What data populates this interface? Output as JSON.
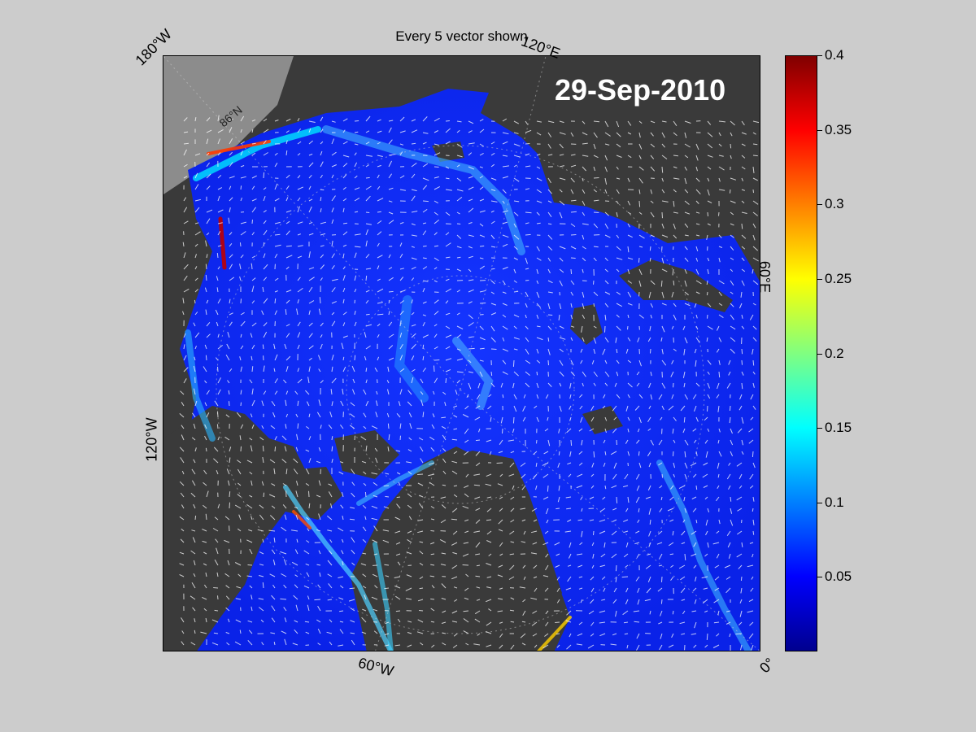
{
  "title": "Every 5 vector shown",
  "date_stamp": "29-Sep-2010",
  "longitude_labels": {
    "w180": "180°W",
    "e120": "120°E",
    "e60": "60°E",
    "w120": "120°W",
    "w60": "60°W",
    "zero": "0°"
  },
  "latitude_label": "86°N",
  "colorbar": {
    "ticks": [
      "0.4",
      "0.35",
      "0.3",
      "0.25",
      "0.2",
      "0.15",
      "0.1",
      "0.05"
    ],
    "range": [
      0,
      0.4
    ],
    "colormap": "jet"
  },
  "colors": {
    "figure_bg": "#cccccc",
    "land": "#3a3a3a",
    "land_light": "#8c8c8c",
    "ocean_low": "#0a1fff",
    "ocean_mid": "#1e90ff",
    "ocean_high": "#00e5ff",
    "vector": "#ffffff"
  }
}
